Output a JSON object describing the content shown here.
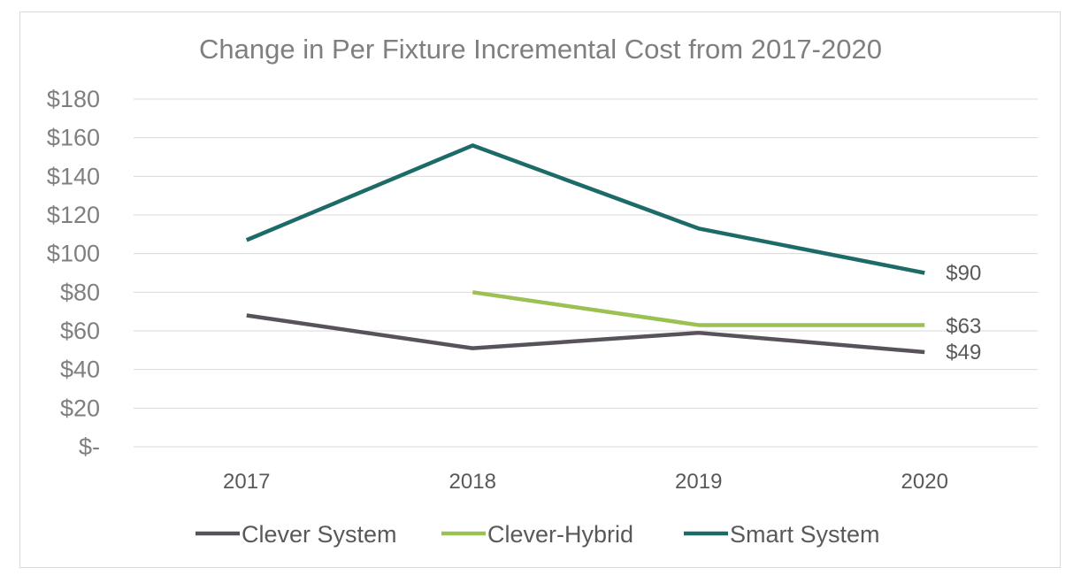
{
  "chart_data": {
    "type": "line",
    "title": "Change in Per Fixture Incremental Cost from 2017-2020",
    "xlabel": "",
    "ylabel": "",
    "categories": [
      "2017",
      "2018",
      "2019",
      "2020"
    ],
    "ylim": [
      0,
      180
    ],
    "yticks": [
      0,
      20,
      40,
      60,
      80,
      100,
      120,
      140,
      160,
      180
    ],
    "ytick_labels": [
      "$-",
      "$20",
      "$40",
      "$60",
      "$80",
      "$100",
      "$120",
      "$140",
      "$160",
      "$180"
    ],
    "grid": true,
    "legend_position": "bottom",
    "series": [
      {
        "name": "Clever System",
        "color": "#58525a",
        "values": [
          68,
          51,
          59,
          49
        ],
        "end_label": "$49"
      },
      {
        "name": "Clever-Hybrid",
        "color": "#9bc152",
        "values": [
          null,
          80,
          63,
          63
        ],
        "end_label": "$63"
      },
      {
        "name": "Smart System",
        "color": "#1d6b68",
        "values": [
          107,
          156,
          113,
          90
        ],
        "end_label": "$90"
      }
    ]
  }
}
